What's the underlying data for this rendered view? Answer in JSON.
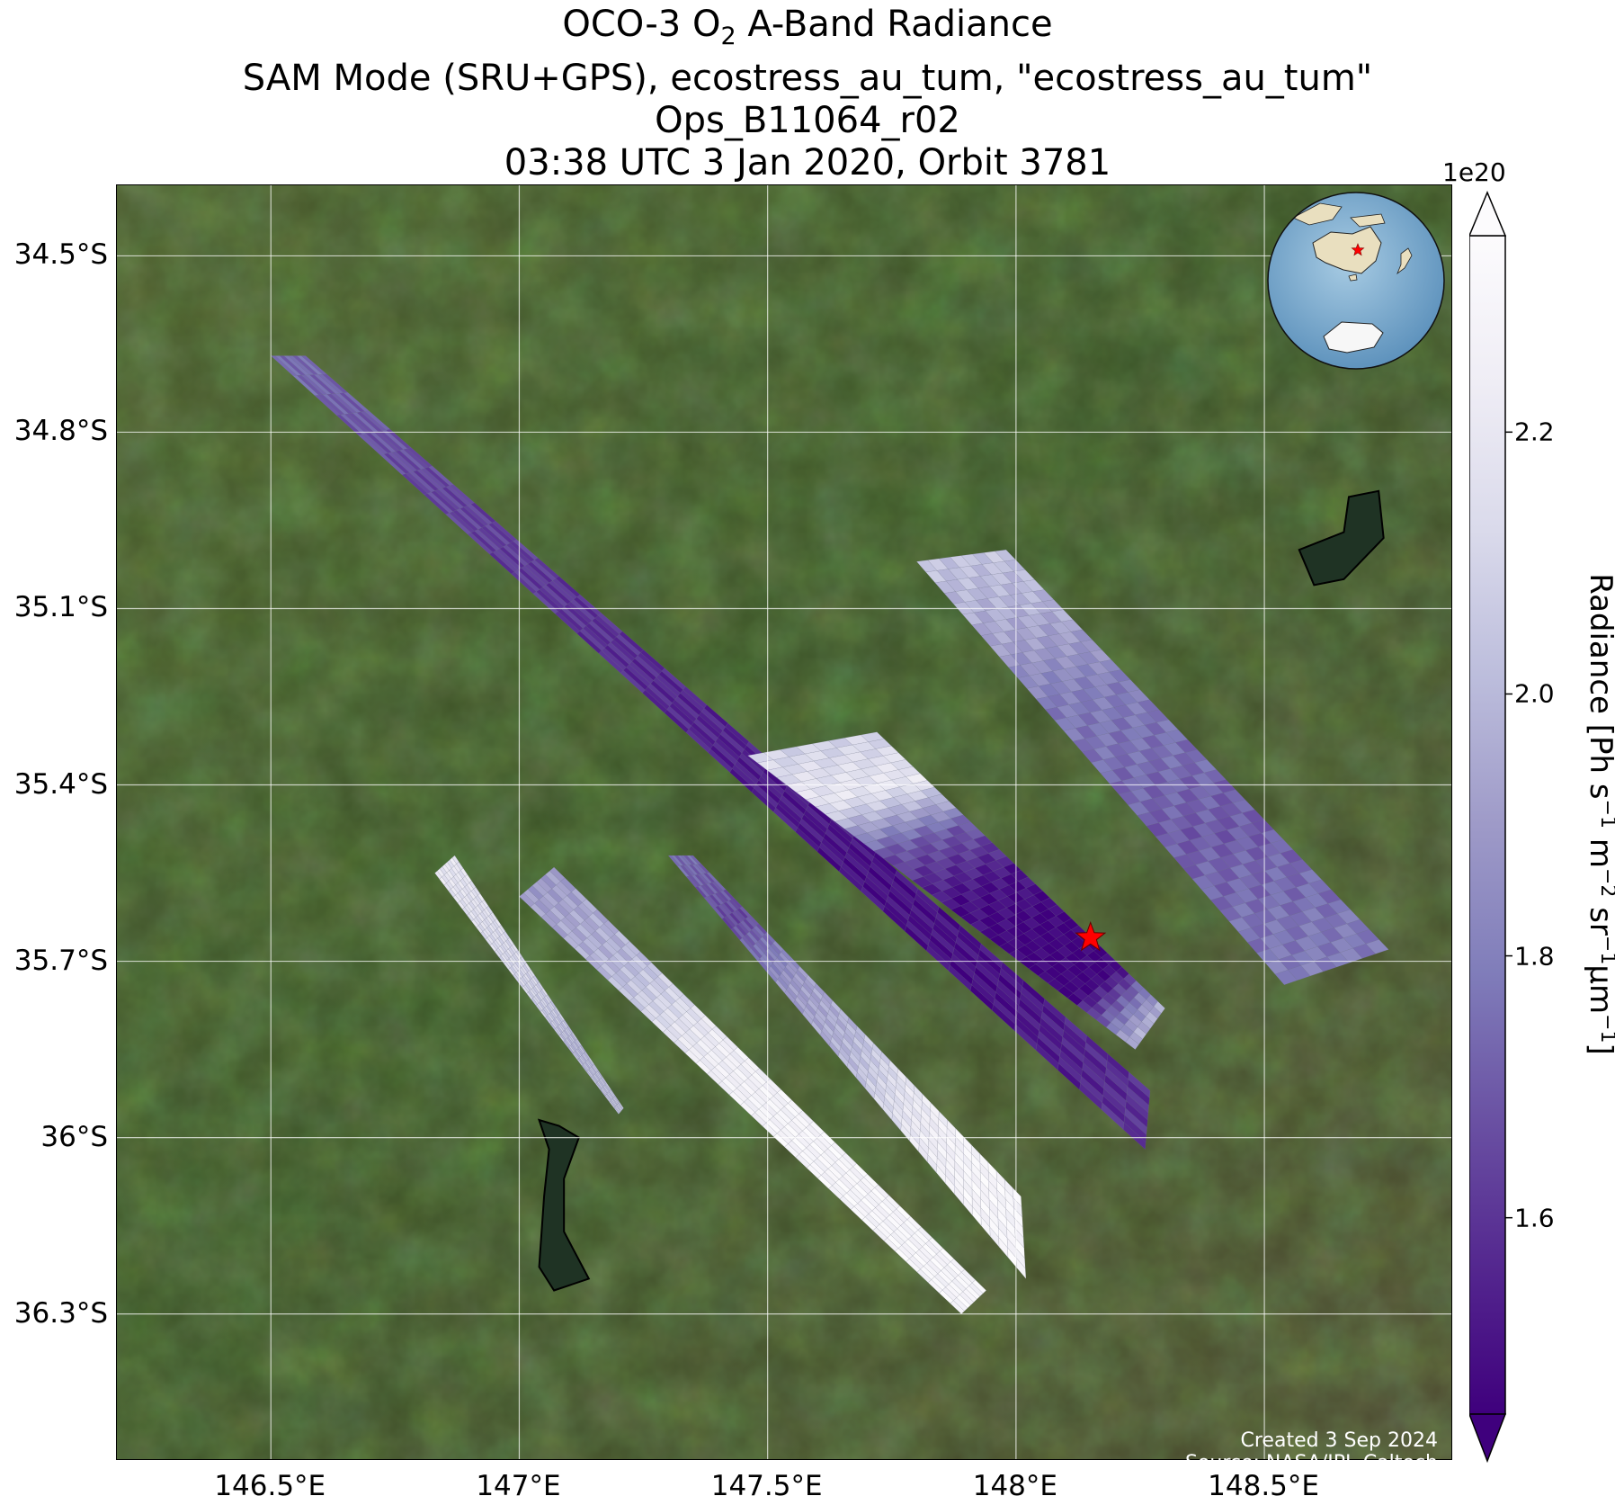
{
  "title": {
    "line1_prefix": "OCO-3 O",
    "line1_sub": "2",
    "line1_suffix": " A-Band Radiance",
    "line2": "SAM Mode (SRU+GPS), ecostress_au_tum, \"ecostress_au_tum\"",
    "line3": "Ops_B11064_r02",
    "line4": "03:38 UTC 3 Jan 2020, Orbit 3781"
  },
  "map": {
    "extent": {
      "lon": [
        146.19,
        148.88
      ],
      "lat": [
        -36.55,
        -34.38
      ]
    },
    "lat_ticks": [
      {
        "value": -34.5,
        "label": "34.5°S"
      },
      {
        "value": -34.8,
        "label": "34.8°S"
      },
      {
        "value": -35.1,
        "label": "35.1°S"
      },
      {
        "value": -35.4,
        "label": "35.4°S"
      },
      {
        "value": -35.7,
        "label": "35.7°S"
      },
      {
        "value": -36.0,
        "label": "36°S"
      },
      {
        "value": -36.3,
        "label": "36.3°S"
      }
    ],
    "lon_ticks": [
      {
        "value": 146.5,
        "label": "146.5°E"
      },
      {
        "value": 147.0,
        "label": "147°E"
      },
      {
        "value": 147.5,
        "label": "147.5°E"
      },
      {
        "value": 148.0,
        "label": "148°E"
      },
      {
        "value": 148.5,
        "label": "148.5°E"
      }
    ],
    "target": {
      "name": "ecostress_au_tum",
      "lon": 148.15,
      "lat": -35.66,
      "marker": "red-star",
      "color": "#ff0000"
    },
    "swaths": [
      {
        "id": "swath-1",
        "corners": [
          [
            146.5,
            -34.67
          ],
          [
            146.57,
            -34.67
          ],
          [
            148.27,
            -35.92
          ],
          [
            148.26,
            -36.02
          ]
        ],
        "radiance_e20": [
          1.75,
          1.65,
          1.6,
          1.55,
          1.5,
          1.5,
          1.6
        ]
      },
      {
        "id": "swath-2",
        "corners": [
          [
            147.8,
            -35.02
          ],
          [
            147.98,
            -35.0
          ],
          [
            148.75,
            -35.68
          ],
          [
            148.54,
            -35.74
          ]
        ],
        "radiance_e20": [
          2.05,
          1.95,
          1.8,
          1.75,
          1.7,
          1.75,
          1.8
        ]
      },
      {
        "id": "swath-3",
        "corners": [
          [
            147.46,
            -35.35
          ],
          [
            147.72,
            -35.31
          ],
          [
            148.3,
            -35.78
          ],
          [
            148.24,
            -35.85
          ]
        ],
        "radiance_e20": [
          2.1,
          2.2,
          1.7,
          1.5,
          1.45,
          1.45,
          2.0
        ]
      },
      {
        "id": "swath-4",
        "corners": [
          [
            147.3,
            -35.52
          ],
          [
            147.35,
            -35.52
          ],
          [
            148.01,
            -36.1
          ],
          [
            148.02,
            -36.24
          ]
        ],
        "radiance_e20": [
          1.75,
          1.65,
          1.9,
          2.0,
          2.2,
          2.3,
          2.3
        ]
      },
      {
        "id": "swath-5",
        "corners": [
          [
            147.0,
            -35.59
          ],
          [
            147.07,
            -35.54
          ],
          [
            147.94,
            -36.26
          ],
          [
            147.89,
            -36.3
          ]
        ],
        "radiance_e20": [
          1.9,
          2.0,
          2.25,
          2.3,
          2.3,
          2.3
        ]
      },
      {
        "id": "swath-6",
        "corners": [
          [
            146.83,
            -35.55
          ],
          [
            146.87,
            -35.52
          ],
          [
            147.21,
            -35.95
          ],
          [
            147.2,
            -35.96
          ]
        ],
        "radiance_e20": [
          2.2,
          2.15,
          2.1,
          2.0,
          2.05
        ]
      }
    ],
    "lake_outlines": [
      [
        [
          147.04,
          -35.97
        ],
        [
          147.06,
          -36.02
        ],
        [
          147.05,
          -36.1
        ],
        [
          147.04,
          -36.22
        ],
        [
          147.07,
          -36.26
        ],
        [
          147.14,
          -36.24
        ],
        [
          147.09,
          -36.16
        ],
        [
          147.09,
          -36.07
        ],
        [
          147.12,
          -36.0
        ],
        [
          147.08,
          -35.98
        ]
      ],
      [
        [
          148.57,
          -35.0
        ],
        [
          148.66,
          -34.97
        ],
        [
          148.67,
          -34.91
        ],
        [
          148.73,
          -34.9
        ],
        [
          148.74,
          -34.98
        ],
        [
          148.66,
          -35.05
        ],
        [
          148.6,
          -35.06
        ]
      ]
    ]
  },
  "colorbar": {
    "label_main": "Radiance [Ph s",
    "label_sup1": "−1",
    "label_mid1": " m",
    "label_sup2": "−2",
    "label_mid2": " sr",
    "label_sup3": "−1",
    "label_mid3": "μm",
    "label_sup4": "−1",
    "label_end": "]",
    "exponent": "1e20",
    "range": [
      1.45,
      2.35
    ],
    "extend": "both",
    "ticks": [
      {
        "value": 1.6,
        "label": "1.6"
      },
      {
        "value": 1.8,
        "label": "1.8"
      },
      {
        "value": 2.0,
        "label": "2.0"
      },
      {
        "value": 2.2,
        "label": "2.2"
      }
    ],
    "colormap": [
      "#3f007d",
      "#54278f",
      "#6a51a3",
      "#807dba",
      "#9e9ac8",
      "#bcbddc",
      "#dadaeb",
      "#efedf5",
      "#fcfbfd"
    ]
  },
  "inset": {
    "name": "locator-globe",
    "marker_color": "#ff0000"
  },
  "credits": {
    "created": "Created 3 Sep 2024",
    "source": "Source: NASA/JPL-Caltech"
  }
}
